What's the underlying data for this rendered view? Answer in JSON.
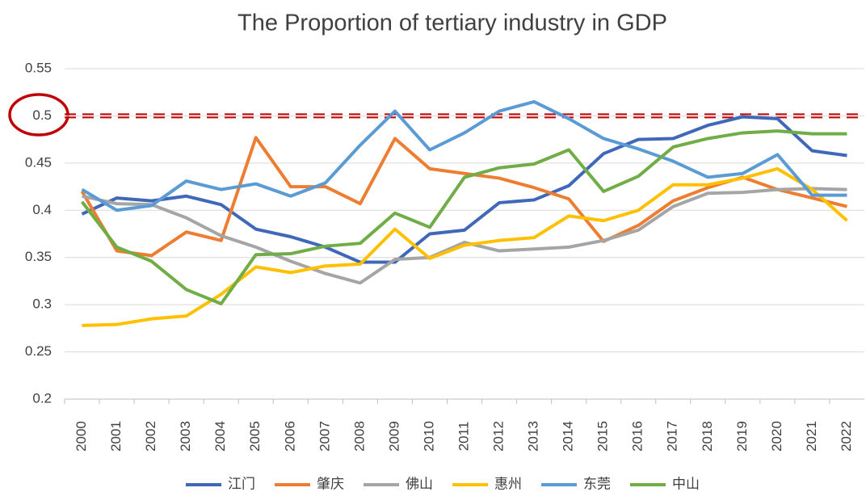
{
  "chart_data": {
    "type": "line",
    "title": "The Proportion of tertiary industry in GDP",
    "categories": [
      "2000",
      "2001",
      "2002",
      "2003",
      "2004",
      "2005",
      "2006",
      "2007",
      "2008",
      "2009",
      "2010",
      "2011",
      "2012",
      "2013",
      "2014",
      "2015",
      "2016",
      "2017",
      "2018",
      "2019",
      "2020",
      "2021",
      "2022"
    ],
    "ylim": [
      0.2,
      0.55
    ],
    "yticks": [
      0.2,
      0.25,
      0.3,
      0.35,
      0.4,
      0.45,
      0.5,
      0.55
    ],
    "grid": true,
    "legend": "bottom",
    "reference_line": {
      "value": 0.5,
      "color": "#c00000"
    },
    "series": [
      {
        "name": "江门",
        "color": "#4068b8",
        "values": [
          0.396,
          0.413,
          0.41,
          0.415,
          0.406,
          0.38,
          0.372,
          0.361,
          0.345,
          0.345,
          0.375,
          0.379,
          0.408,
          0.411,
          0.426,
          0.46,
          0.475,
          0.476,
          0.49,
          0.499,
          0.497,
          0.463,
          0.458
        ]
      },
      {
        "name": "肇庆",
        "color": "#ed7d31",
        "values": [
          0.42,
          0.357,
          0.352,
          0.377,
          0.368,
          0.477,
          0.425,
          0.425,
          0.407,
          0.476,
          0.444,
          0.439,
          0.434,
          0.424,
          0.412,
          0.367,
          0.384,
          0.41,
          0.424,
          0.435,
          0.422,
          0.413,
          0.404
        ]
      },
      {
        "name": "佛山",
        "color": "#a5a5a5",
        "values": [
          0.415,
          0.407,
          0.406,
          0.392,
          0.373,
          0.361,
          0.346,
          0.333,
          0.323,
          0.348,
          0.35,
          0.366,
          0.357,
          0.359,
          0.361,
          0.368,
          0.379,
          0.404,
          0.418,
          0.419,
          0.422,
          0.423,
          0.422
        ]
      },
      {
        "name": "惠州",
        "color": "#ffc000",
        "values": [
          0.278,
          0.279,
          0.285,
          0.288,
          0.311,
          0.34,
          0.334,
          0.341,
          0.343,
          0.38,
          0.349,
          0.363,
          0.368,
          0.371,
          0.394,
          0.389,
          0.4,
          0.427,
          0.427,
          0.434,
          0.444,
          0.422,
          0.389
        ]
      },
      {
        "name": "东莞",
        "color": "#5b9bd5",
        "values": [
          0.422,
          0.4,
          0.405,
          0.431,
          0.422,
          0.428,
          0.415,
          0.429,
          0.469,
          0.505,
          0.464,
          0.482,
          0.505,
          0.515,
          0.497,
          0.476,
          0.465,
          0.452,
          0.435,
          0.439,
          0.459,
          0.416,
          0.416
        ]
      },
      {
        "name": "中山",
        "color": "#70ad47",
        "values": [
          0.409,
          0.361,
          0.346,
          0.316,
          0.301,
          0.353,
          0.354,
          0.362,
          0.365,
          0.397,
          0.382,
          0.435,
          0.445,
          0.449,
          0.464,
          0.42,
          0.436,
          0.467,
          0.476,
          0.482,
          0.484,
          0.481,
          0.481
        ]
      }
    ]
  }
}
